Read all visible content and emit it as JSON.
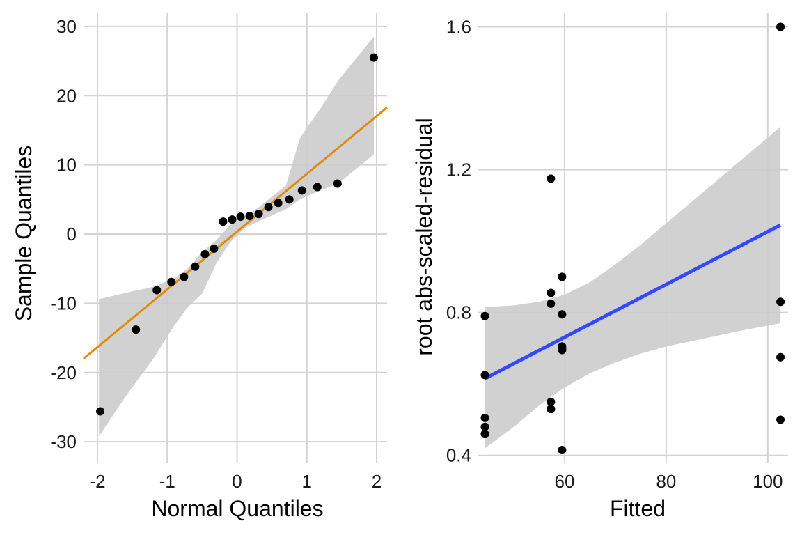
{
  "chart_data": [
    {
      "type": "scatter",
      "xlabel": "Normal Quantiles",
      "ylabel": "Sample Quantiles",
      "xlim": [
        -2.2,
        2.15
      ],
      "ylim": [
        -33,
        32
      ],
      "x_ticks": [
        -2,
        -1,
        0,
        1,
        2
      ],
      "x_tick_labels": [
        "-2",
        "-1",
        "0",
        "1",
        "2"
      ],
      "y_ticks": [
        -30,
        -20,
        -10,
        0,
        10,
        20,
        30
      ],
      "y_tick_labels": [
        "-30",
        "-20",
        "-10",
        "0",
        "10",
        "20",
        "30"
      ],
      "grid": true,
      "colors": {
        "line": "#E08C0A",
        "band": "#cccccc",
        "points": "#000000",
        "grid": "#d3d3d3"
      },
      "points": {
        "x": [
          -1.96,
          -1.45,
          -1.15,
          -0.94,
          -0.76,
          -0.6,
          -0.46,
          -0.33,
          -0.2,
          -0.07,
          0.05,
          0.18,
          0.31,
          0.45,
          0.59,
          0.75,
          0.93,
          1.15,
          1.44,
          1.96
        ],
        "y": [
          -25.6,
          -13.8,
          -8.1,
          -6.9,
          -6.2,
          -4.7,
          -2.9,
          -2.1,
          1.8,
          2.1,
          2.5,
          2.6,
          2.9,
          3.9,
          4.5,
          5.0,
          6.3,
          6.8,
          7.3,
          25.5
        ]
      },
      "reference_line": {
        "x": [
          -2.2,
          2.15
        ],
        "y": [
          -18.0,
          18.3
        ]
      },
      "confidence_band": {
        "x": [
          -1.98,
          -1.6,
          -1.2,
          -0.9,
          -0.7,
          -0.5,
          -0.3,
          -0.1,
          0.1,
          0.3,
          0.5,
          0.7,
          0.9,
          1.0,
          1.2,
          1.45,
          1.96
        ],
        "upper": [
          -9.4,
          -8.5,
          -7.6,
          -6.4,
          -4.9,
          -2.6,
          -0.9,
          1.3,
          2.4,
          3.8,
          5.4,
          7.0,
          13.8,
          15.4,
          18.2,
          22.2,
          28.5
        ],
        "lower": [
          -29.2,
          -23.5,
          -18.0,
          -13.2,
          -10.5,
          -8.6,
          -4.3,
          -1.2,
          0.8,
          1.8,
          2.7,
          3.6,
          5.0,
          5.5,
          6.3,
          7.3,
          11.5
        ]
      }
    },
    {
      "type": "scatter",
      "xlabel": "Fitted",
      "ylabel": "root abs-scaled-residual",
      "xlim": [
        43,
        104
      ],
      "ylim": [
        0.38,
        1.64
      ],
      "x_ticks": [
        60,
        80,
        100
      ],
      "x_tick_labels": [
        "60",
        "80",
        "100"
      ],
      "y_ticks": [
        0.4,
        0.8,
        1.2,
        1.6
      ],
      "y_tick_labels": [
        "0.4",
        "0.8",
        "1.2",
        "1.6"
      ],
      "grid": true,
      "colors": {
        "line": "#3348FF",
        "band": "#cccccc",
        "points": "#000000",
        "grid": "#d3d3d3"
      },
      "points": {
        "x": [
          44.3,
          44.3,
          44.3,
          44.3,
          44.3,
          44.3,
          57.3,
          57.3,
          57.3,
          57.3,
          57.3,
          57.3,
          59.5,
          59.5,
          59.5,
          59.5,
          59.5,
          59.5,
          102.5,
          102.5,
          102.5,
          102.5
        ],
        "y": [
          0.79,
          0.625,
          0.505,
          0.48,
          0.46,
          0.46,
          1.175,
          0.855,
          0.825,
          0.55,
          0.53,
          0.53,
          0.9,
          0.795,
          0.705,
          0.695,
          0.415,
          0.7,
          1.6,
          0.83,
          0.675,
          0.5
        ]
      },
      "fit_line": {
        "x": [
          44.3,
          102.5
        ],
        "y": [
          0.615,
          1.045
        ]
      },
      "confidence_band": {
        "x": [
          44.3,
          50,
          55,
          60,
          65,
          70,
          75,
          80,
          85,
          90,
          95,
          102.5
        ],
        "upper": [
          0.815,
          0.82,
          0.83,
          0.85,
          0.885,
          0.935,
          0.99,
          1.05,
          1.11,
          1.17,
          1.23,
          1.32
        ],
        "lower": [
          0.42,
          0.48,
          0.54,
          0.59,
          0.63,
          0.66,
          0.685,
          0.705,
          0.72,
          0.735,
          0.75,
          0.77
        ]
      }
    }
  ]
}
